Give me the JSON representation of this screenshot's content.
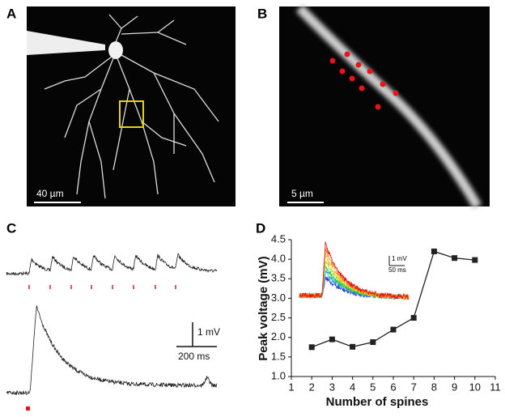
{
  "panels": {
    "a": "A",
    "b": "B",
    "c": "C",
    "d": "D"
  },
  "scale_bars": {
    "a": "40 µm",
    "b": "5 µm",
    "c_voltage": "1 mV",
    "c_time": "200 ms",
    "d_inset_voltage": "1 mV",
    "d_inset_time": "50 ms"
  },
  "chart_data": {
    "type": "line",
    "x_label": "Number of spines",
    "y_label": "Peak voltage (mV)",
    "x": [
      2,
      3,
      4,
      5,
      6,
      7,
      8,
      9,
      10
    ],
    "series": [
      {
        "color": "#222222",
        "values": [
          1.75,
          1.95,
          1.76,
          1.88,
          2.2,
          2.5,
          4.2,
          4.03,
          3.98
        ]
      }
    ],
    "xlim": [
      1,
      11
    ],
    "xticks": [
      1,
      2,
      3,
      4,
      5,
      6,
      7,
      8,
      9,
      10,
      11
    ],
    "ylim": [
      1,
      4.5
    ],
    "yticks": [
      {
        "value": 1,
        "label": "1.0"
      },
      1.5,
      {
        "value": 2,
        "label": "2.0"
      },
      2.5,
      {
        "value": 3,
        "label": "3.0"
      },
      3.5,
      {
        "value": 4,
        "label": "4.0"
      },
      4.5
    ]
  }
}
